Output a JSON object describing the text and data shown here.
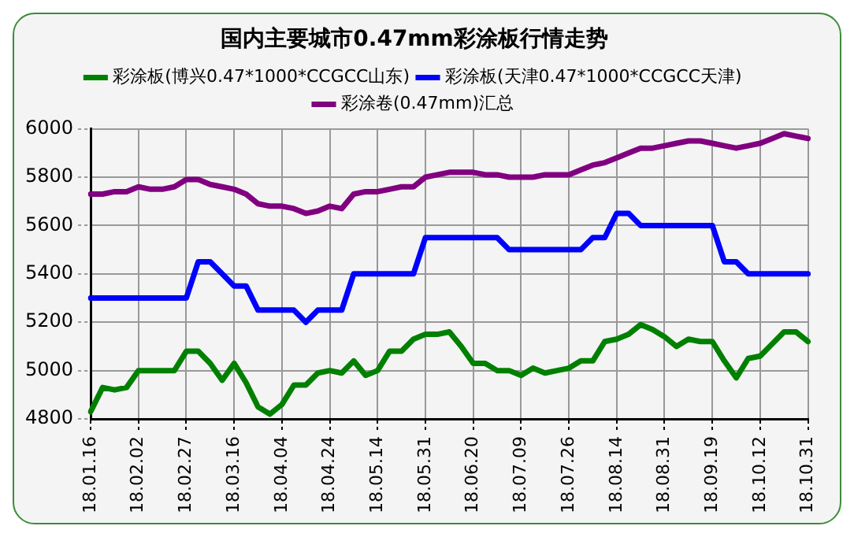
{
  "chart_data": {
    "type": "line",
    "title": "国内主要城市0.47mm彩涂板行情走势",
    "categories": [
      "18.01.16",
      null,
      null,
      null,
      "18.02.02",
      null,
      null,
      null,
      "18.02.27",
      null,
      null,
      null,
      "18.03.16",
      null,
      null,
      null,
      "18.04.04",
      null,
      null,
      null,
      "18.04.24",
      null,
      null,
      null,
      "18.05.14",
      null,
      null,
      null,
      "18.05.31",
      null,
      null,
      null,
      "18.06.20",
      null,
      null,
      null,
      "18.07.09",
      null,
      null,
      null,
      "18.07.26",
      null,
      null,
      null,
      "18.08.14",
      null,
      null,
      null,
      "18.08.31",
      null,
      null,
      null,
      "18.09.19",
      null,
      null,
      null,
      "18.10.12",
      null,
      null,
      null,
      "18.10.31"
    ],
    "series": [
      {
        "name": "彩涂板(博兴0.47*1000*CCGCC山东)",
        "color": "#008000",
        "values": [
          4830,
          4930,
          4920,
          4930,
          5000,
          5000,
          5000,
          5000,
          5080,
          5080,
          5030,
          4960,
          5030,
          4950,
          4850,
          4820,
          4860,
          4940,
          4940,
          4990,
          5000,
          4990,
          5040,
          4980,
          5000,
          5080,
          5080,
          5130,
          5150,
          5150,
          5160,
          5100,
          5030,
          5030,
          5000,
          5000,
          4980,
          5010,
          4990,
          5000,
          5010,
          5040,
          5040,
          5120,
          5130,
          5150,
          5190,
          5170,
          5140,
          5100,
          5130,
          5120,
          5120,
          5040,
          4970,
          5050,
          5060,
          5110,
          5160,
          5160,
          5120
        ]
      },
      {
        "name": "彩涂板(天津0.47*1000*CCGCC天津)",
        "color": "#0000ff",
        "values": [
          5300,
          5300,
          5300,
          5300,
          5300,
          5300,
          5300,
          5300,
          5300,
          5450,
          5450,
          5400,
          5350,
          5350,
          5250,
          5250,
          5250,
          5250,
          5200,
          5250,
          5250,
          5250,
          5400,
          5400,
          5400,
          5400,
          5400,
          5400,
          5550,
          5550,
          5550,
          5550,
          5550,
          5550,
          5550,
          5500,
          5500,
          5500,
          5500,
          5500,
          5500,
          5500,
          5550,
          5550,
          5650,
          5650,
          5600,
          5600,
          5600,
          5600,
          5600,
          5600,
          5600,
          5450,
          5450,
          5400,
          5400,
          5400,
          5400,
          5400,
          5400
        ]
      },
      {
        "name": "彩涂卷(0.47mm)汇总",
        "color": "#800080",
        "values": [
          5730,
          5730,
          5740,
          5740,
          5760,
          5750,
          5750,
          5760,
          5790,
          5790,
          5770,
          5760,
          5750,
          5730,
          5690,
          5680,
          5680,
          5670,
          5650,
          5660,
          5680,
          5670,
          5730,
          5740,
          5740,
          5750,
          5760,
          5760,
          5800,
          5810,
          5820,
          5820,
          5820,
          5810,
          5810,
          5800,
          5800,
          5800,
          5810,
          5810,
          5810,
          5830,
          5850,
          5860,
          5880,
          5900,
          5920,
          5920,
          5930,
          5940,
          5950,
          5950,
          5940,
          5930,
          5920,
          5930,
          5940,
          5960,
          5980,
          5970,
          5960
        ]
      }
    ],
    "ylim": [
      4800,
      6000
    ],
    "yticks": [
      4800,
      5000,
      5200,
      5400,
      5600,
      5800,
      6000
    ],
    "grid": true,
    "legend": "top",
    "marker": "none",
    "line_style": "solid"
  }
}
